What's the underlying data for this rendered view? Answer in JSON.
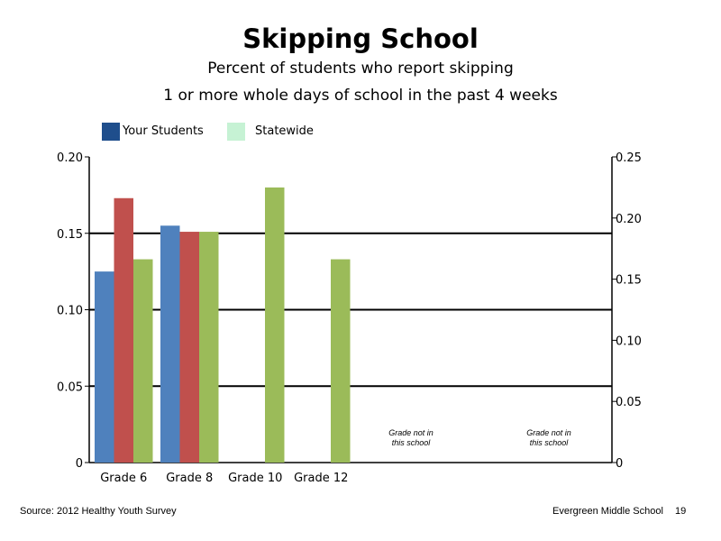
{
  "title": "Skipping School",
  "subtitle_line1": "Percent of students who report skipping",
  "subtitle_line2": "1 or more whole days of school in the past 4 weeks",
  "legend": [
    {
      "label": "Your Students",
      "color": "#1f4e8c"
    },
    {
      "label": "Statewide",
      "color": "#c6f2d4"
    }
  ],
  "footer": {
    "source": "Source: 2012 Healthy Youth Survey",
    "school": "Evergreen Middle School",
    "page": "19"
  },
  "chart_data": {
    "type": "bar",
    "categories": [
      "Grade 6",
      "Grade 8",
      "Grade 10",
      "Grade 12"
    ],
    "series": [
      {
        "values": [
          0.125,
          0.155,
          null,
          null
        ],
        "color": "#4f81bd"
      },
      {
        "values": [
          0.173,
          0.151,
          null,
          null
        ],
        "color": "#c0504d"
      },
      {
        "values": [
          0.133,
          0.151,
          0.18,
          0.133
        ],
        "color": "#9bbb59"
      }
    ],
    "ylim": [
      0,
      0.2
    ],
    "yticks": [
      "0.20",
      "0.15",
      "0.10",
      "0.05",
      "0"
    ],
    "y2lim": [
      0,
      0.25
    ],
    "y2ticks": [
      "0.25",
      "0.20",
      "0.15",
      "0.10",
      "0.05",
      "0"
    ],
    "annotations": [
      {
        "line1": "Grade not in",
        "line2": "this school"
      },
      {
        "line1": "Grade not in",
        "line2": "this school"
      }
    ],
    "grid": true
  }
}
